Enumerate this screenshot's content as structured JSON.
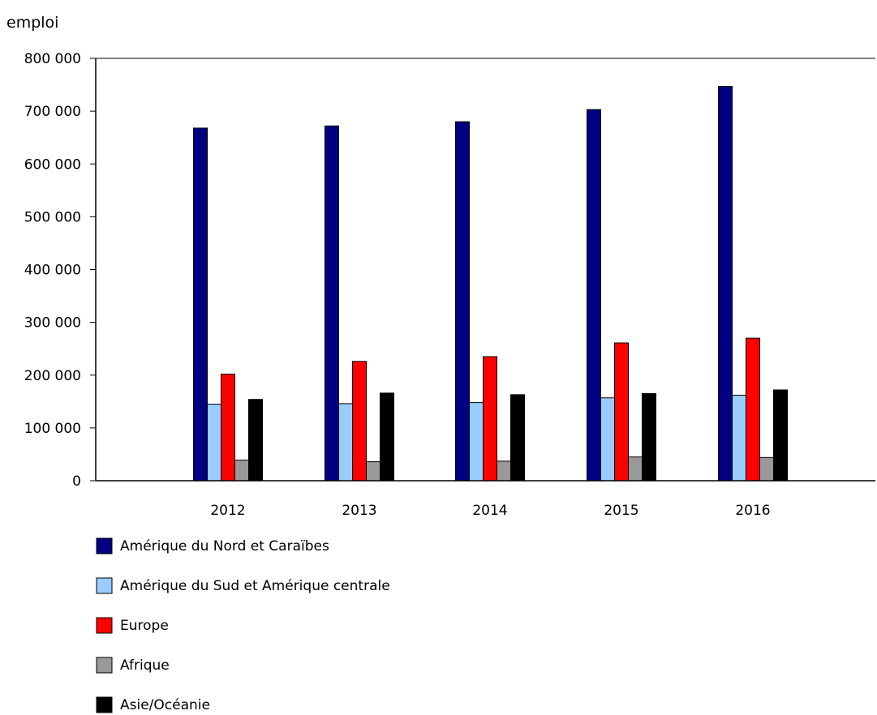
{
  "chart_data": {
    "type": "bar",
    "title": "",
    "xlabel": "",
    "ylabel": "emploi",
    "ylim": [
      0,
      800000
    ],
    "yticks": [
      0,
      100000,
      200000,
      300000,
      400000,
      500000,
      600000,
      700000,
      800000
    ],
    "ytick_labels": [
      "0",
      "100 000",
      "200 000",
      "300 000",
      "400 000",
      "500 000",
      "600 000",
      "700 000",
      "800 000"
    ],
    "categories": [
      "2012",
      "2013",
      "2014",
      "2015",
      "2016"
    ],
    "grid": false,
    "legend_position": "bottom",
    "series": [
      {
        "name": "Amérique du Nord et Caraïbes",
        "color": "#000080",
        "values": [
          668000,
          672000,
          680000,
          703000,
          747000
        ]
      },
      {
        "name": "Amérique du Sud et Amérique centrale",
        "color": "#99ccff",
        "values": [
          145000,
          146000,
          148000,
          157000,
          162000
        ]
      },
      {
        "name": "Europe",
        "color": "#ff0000",
        "values": [
          202000,
          226000,
          235000,
          261000,
          270000
        ]
      },
      {
        "name": "Afrique",
        "color": "#999999",
        "values": [
          39000,
          36000,
          37000,
          45000,
          44000
        ]
      },
      {
        "name": "Asie/Océanie",
        "color": "#000000",
        "values": [
          154000,
          166000,
          163000,
          165000,
          172000
        ]
      }
    ]
  }
}
